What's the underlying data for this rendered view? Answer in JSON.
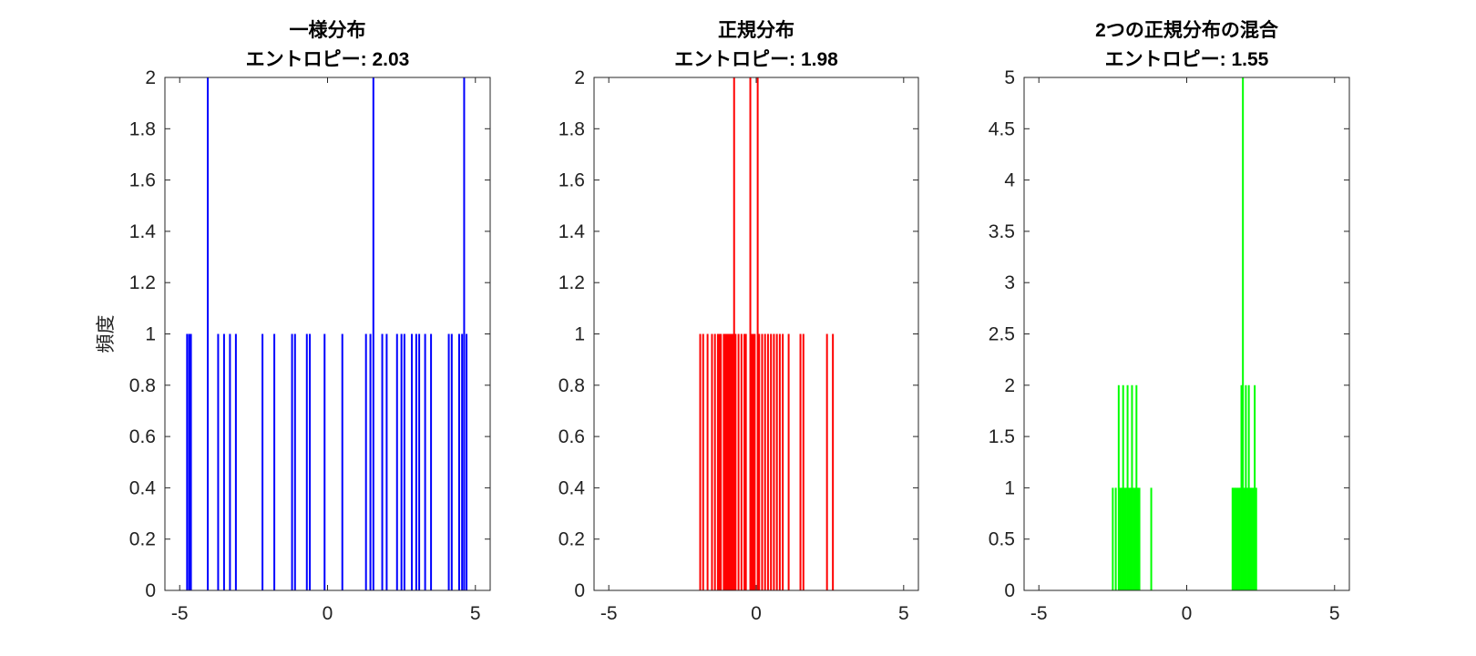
{
  "chart_data": [
    {
      "type": "histogram",
      "title": "一様分布",
      "subtitle": "エントロピー: 2.03",
      "ylabel": "頻度",
      "xlabel": "",
      "color": "#0000ff",
      "xlim": [
        -5.5,
        5.5
      ],
      "ylim": [
        0,
        2
      ],
      "xticks": [
        -5,
        0,
        5
      ],
      "xtick_labels": [
        "-5",
        "0",
        "5"
      ],
      "yticks": [
        0,
        0.2,
        0.4,
        0.6,
        0.8,
        1,
        1.2,
        1.4,
        1.6,
        1.8,
        2
      ],
      "ytick_labels": [
        "0",
        "0.2",
        "0.4",
        "0.6",
        "0.8",
        "1",
        "1.2",
        "1.4",
        "1.6",
        "1.8",
        "2"
      ],
      "bars": [
        {
          "x": -4.75,
          "h": 1
        },
        {
          "x": -4.68,
          "h": 1
        },
        {
          "x": -4.62,
          "h": 1
        },
        {
          "x": -4.05,
          "h": 2
        },
        {
          "x": -3.7,
          "h": 1
        },
        {
          "x": -3.5,
          "h": 1
        },
        {
          "x": -3.3,
          "h": 1
        },
        {
          "x": -3.1,
          "h": 1
        },
        {
          "x": -2.2,
          "h": 1
        },
        {
          "x": -1.8,
          "h": 1
        },
        {
          "x": -1.2,
          "h": 1
        },
        {
          "x": -1.1,
          "h": 1
        },
        {
          "x": -0.7,
          "h": 1
        },
        {
          "x": -0.6,
          "h": 1
        },
        {
          "x": -0.1,
          "h": 1
        },
        {
          "x": 0.5,
          "h": 1
        },
        {
          "x": 1.3,
          "h": 1
        },
        {
          "x": 1.45,
          "h": 1
        },
        {
          "x": 1.55,
          "h": 2
        },
        {
          "x": 1.85,
          "h": 1
        },
        {
          "x": 2.0,
          "h": 1
        },
        {
          "x": 2.35,
          "h": 1
        },
        {
          "x": 2.5,
          "h": 1
        },
        {
          "x": 2.6,
          "h": 1
        },
        {
          "x": 2.85,
          "h": 1
        },
        {
          "x": 3.0,
          "h": 1
        },
        {
          "x": 3.1,
          "h": 1
        },
        {
          "x": 3.3,
          "h": 1
        },
        {
          "x": 3.5,
          "h": 1
        },
        {
          "x": 4.1,
          "h": 1
        },
        {
          "x": 4.2,
          "h": 1
        },
        {
          "x": 4.45,
          "h": 1
        },
        {
          "x": 4.55,
          "h": 1
        },
        {
          "x": 4.62,
          "h": 2
        },
        {
          "x": 4.7,
          "h": 1
        }
      ]
    },
    {
      "type": "histogram",
      "title": "正規分布",
      "subtitle": "エントロピー: 1.98",
      "ylabel": "",
      "xlabel": "",
      "color": "#ff0000",
      "xlim": [
        -5.5,
        5.5
      ],
      "ylim": [
        0,
        2
      ],
      "xticks": [
        -5,
        0,
        5
      ],
      "xtick_labels": [
        "-5",
        "0",
        "5"
      ],
      "yticks": [
        0,
        0.2,
        0.4,
        0.6,
        0.8,
        1,
        1.2,
        1.4,
        1.6,
        1.8,
        2
      ],
      "ytick_labels": [
        "0",
        "0.2",
        "0.4",
        "0.6",
        "0.8",
        "1",
        "1.2",
        "1.4",
        "1.6",
        "1.8",
        "2"
      ],
      "bars": [
        {
          "x": -1.9,
          "h": 1
        },
        {
          "x": -1.8,
          "h": 1
        },
        {
          "x": -1.65,
          "h": 1
        },
        {
          "x": -1.5,
          "h": 1
        },
        {
          "x": -1.4,
          "h": 1
        },
        {
          "x": -1.3,
          "h": 1
        },
        {
          "x": -1.25,
          "h": 1
        },
        {
          "x": -1.2,
          "h": 1
        },
        {
          "x": -1.1,
          "h": 1
        },
        {
          "x": -1.05,
          "h": 1
        },
        {
          "x": -1.0,
          "h": 1
        },
        {
          "x": -0.95,
          "h": 1
        },
        {
          "x": -0.9,
          "h": 1
        },
        {
          "x": -0.85,
          "h": 1
        },
        {
          "x": -0.8,
          "h": 1
        },
        {
          "x": -0.75,
          "h": 2
        },
        {
          "x": -0.7,
          "h": 1
        },
        {
          "x": -0.6,
          "h": 1
        },
        {
          "x": -0.5,
          "h": 1
        },
        {
          "x": -0.4,
          "h": 1
        },
        {
          "x": -0.35,
          "h": 1
        },
        {
          "x": -0.2,
          "h": 2
        },
        {
          "x": -0.15,
          "h": 1
        },
        {
          "x": -0.1,
          "h": 1
        },
        {
          "x": -0.05,
          "h": 1
        },
        {
          "x": 0.05,
          "h": 2
        },
        {
          "x": 0.1,
          "h": 1
        },
        {
          "x": 0.2,
          "h": 1
        },
        {
          "x": 0.3,
          "h": 1
        },
        {
          "x": 0.4,
          "h": 1
        },
        {
          "x": 0.5,
          "h": 1
        },
        {
          "x": 0.6,
          "h": 1
        },
        {
          "x": 0.7,
          "h": 1
        },
        {
          "x": 0.8,
          "h": 1
        },
        {
          "x": 0.9,
          "h": 1
        },
        {
          "x": 1.1,
          "h": 1
        },
        {
          "x": 1.5,
          "h": 1
        },
        {
          "x": 1.6,
          "h": 1
        },
        {
          "x": 2.4,
          "h": 1
        },
        {
          "x": 2.6,
          "h": 1
        }
      ]
    },
    {
      "type": "histogram",
      "title": "2つの正規分布の混合",
      "subtitle": "エントロピー: 1.55",
      "ylabel": "",
      "xlabel": "",
      "color": "#00ff00",
      "xlim": [
        -5.5,
        5.5
      ],
      "ylim": [
        0,
        5
      ],
      "xticks": [
        -5,
        0,
        5
      ],
      "xtick_labels": [
        "-5",
        "0",
        "5"
      ],
      "yticks": [
        0,
        0.5,
        1,
        1.5,
        2,
        2.5,
        3,
        3.5,
        4,
        4.5,
        5
      ],
      "ytick_labels": [
        "0",
        "0.5",
        "1",
        "1.5",
        "2",
        "2.5",
        "3",
        "3.5",
        "4",
        "4.5",
        "5"
      ],
      "bars": [
        {
          "x": -2.5,
          "h": 1
        },
        {
          "x": -2.4,
          "h": 1
        },
        {
          "x": -2.3,
          "h": 2
        },
        {
          "x": -2.25,
          "h": 1
        },
        {
          "x": -2.2,
          "h": 1
        },
        {
          "x": -2.15,
          "h": 2
        },
        {
          "x": -2.1,
          "h": 1
        },
        {
          "x": -2.05,
          "h": 1
        },
        {
          "x": -2.0,
          "h": 2
        },
        {
          "x": -1.95,
          "h": 1
        },
        {
          "x": -1.9,
          "h": 1
        },
        {
          "x": -1.85,
          "h": 2
        },
        {
          "x": -1.8,
          "h": 1
        },
        {
          "x": -1.75,
          "h": 1
        },
        {
          "x": -1.7,
          "h": 2
        },
        {
          "x": -1.65,
          "h": 1
        },
        {
          "x": -1.6,
          "h": 1
        },
        {
          "x": -1.2,
          "h": 1
        },
        {
          "x": 1.55,
          "h": 1
        },
        {
          "x": 1.6,
          "h": 1
        },
        {
          "x": 1.65,
          "h": 1
        },
        {
          "x": 1.7,
          "h": 1
        },
        {
          "x": 1.75,
          "h": 1
        },
        {
          "x": 1.8,
          "h": 1
        },
        {
          "x": 1.85,
          "h": 2
        },
        {
          "x": 1.9,
          "h": 5
        },
        {
          "x": 1.95,
          "h": 1
        },
        {
          "x": 2.0,
          "h": 2
        },
        {
          "x": 2.05,
          "h": 1
        },
        {
          "x": 2.1,
          "h": 2
        },
        {
          "x": 2.15,
          "h": 1
        },
        {
          "x": 2.2,
          "h": 1
        },
        {
          "x": 2.25,
          "h": 1
        },
        {
          "x": 2.3,
          "h": 2
        },
        {
          "x": 2.35,
          "h": 1
        }
      ]
    }
  ]
}
